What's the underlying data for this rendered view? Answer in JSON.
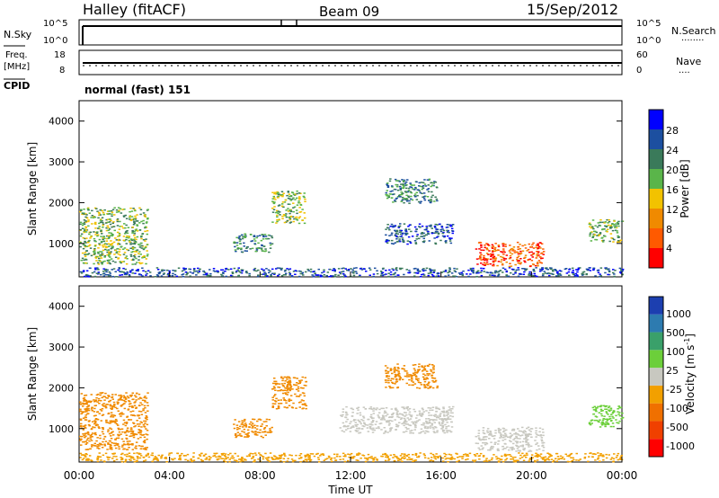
{
  "header": {
    "station": "Halley (fitACF)",
    "beam": "Beam 09",
    "date": "15/Sep/2012"
  },
  "status_panels": {
    "nsky_label": "N.Sky",
    "nsky_ticks": [
      "10^5",
      "10^0"
    ],
    "nsearch_label": "N.Search",
    "nsearch_ticks": [
      "10^5",
      "10^0"
    ],
    "freq_label": "Freq.",
    "freq_unit": "[MHz]",
    "freq_ticks": [
      "18",
      "8"
    ],
    "nave_label": "Nave",
    "nave_ticks": [
      "60",
      "0"
    ],
    "cpid_label": "CPID",
    "cpid_value": "normal (fast) 151"
  },
  "chart_data": [
    {
      "type": "heatmap",
      "name": "power",
      "ylabel": "Slant Range [km]",
      "ylim": [
        180,
        4500
      ],
      "yticks": [
        "4000",
        "3000",
        "2000",
        "1000"
      ],
      "ytick_values": [
        4000,
        3000,
        2000,
        1000
      ],
      "xlim": [
        0,
        24
      ],
      "colorbar_label": "Power [dB]",
      "colorbar_ticks": [
        "28",
        "24",
        "20",
        "16",
        "12",
        "8",
        "4"
      ],
      "colorbar_colors": [
        "#0000ff",
        "#1c4fa0",
        "#3a7a5a",
        "#5ab54a",
        "#f2c200",
        "#f08a00",
        "#ff5a00",
        "#ff0000"
      ],
      "echo_regions_utc_km": [
        {
          "t0": 0.0,
          "t1": 3.0,
          "r0": 500,
          "r1": 1900,
          "level": 3
        },
        {
          "t0": 0.0,
          "t1": 24.0,
          "r0": 200,
          "r1": 420,
          "level": 1
        },
        {
          "t0": 6.8,
          "t1": 8.5,
          "r0": 800,
          "r1": 1250,
          "level": 2
        },
        {
          "t0": 8.5,
          "t1": 10.0,
          "r0": 1500,
          "r1": 2300,
          "level": 3
        },
        {
          "t0": 13.5,
          "t1": 15.8,
          "r0": 2000,
          "r1": 2600,
          "level": 2
        },
        {
          "t0": 13.5,
          "t1": 16.5,
          "r0": 1000,
          "r1": 1500,
          "level": 1
        },
        {
          "t0": 17.5,
          "t1": 20.5,
          "r0": 450,
          "r1": 1050,
          "level": 6
        },
        {
          "t0": 22.5,
          "t1": 24.0,
          "r0": 1050,
          "r1": 1600,
          "level": 3
        }
      ]
    },
    {
      "type": "heatmap",
      "name": "velocity",
      "ylabel": "Slant Range [km]",
      "xlabel": "Time UT",
      "ylim": [
        180,
        4500
      ],
      "yticks": [
        "4000",
        "3000",
        "2000",
        "1000"
      ],
      "ytick_values": [
        4000,
        3000,
        2000,
        1000
      ],
      "xlim": [
        0,
        24
      ],
      "xticks": [
        "00:00",
        "04:00",
        "08:00",
        "12:00",
        "16:00",
        "20:00",
        "00:00"
      ],
      "xtick_values": [
        0,
        4,
        8,
        12,
        16,
        20,
        24
      ],
      "colorbar_label": "Velocity [m s",
      "colorbar_label_superscript": "-1",
      "colorbar_label_close": "]",
      "colorbar_ticks": [
        "1000",
        "500",
        "100",
        "25",
        "-25",
        "-100",
        "-500",
        "-1000"
      ],
      "colorbar_colors": [
        "#1c3fb0",
        "#2d7bb0",
        "#3aa06a",
        "#6ccf3a",
        "#c8c8c0",
        "#f2a000",
        "#f07000",
        "#f04000",
        "#ff0000"
      ],
      "echo_regions_utc_km": [
        {
          "t0": 0.0,
          "t1": 3.0,
          "r0": 500,
          "r1": 1900,
          "color": "#f08a00"
        },
        {
          "t0": 0.0,
          "t1": 24.0,
          "r0": 200,
          "r1": 420,
          "color": "#f2a000"
        },
        {
          "t0": 6.8,
          "t1": 8.5,
          "r0": 800,
          "r1": 1250,
          "color": "#f08a00"
        },
        {
          "t0": 8.5,
          "t1": 10.0,
          "r0": 1500,
          "r1": 2300,
          "color": "#f08a00"
        },
        {
          "t0": 11.5,
          "t1": 16.5,
          "r0": 900,
          "r1": 1550,
          "color": "#c8c8c0"
        },
        {
          "t0": 13.5,
          "t1": 15.8,
          "r0": 2000,
          "r1": 2600,
          "color": "#f08a00"
        },
        {
          "t0": 17.5,
          "t1": 20.5,
          "r0": 450,
          "r1": 1050,
          "color": "#c8c8c0"
        },
        {
          "t0": 22.5,
          "t1": 24.0,
          "r0": 1050,
          "r1": 1600,
          "color": "#6ccf3a"
        }
      ]
    }
  ]
}
